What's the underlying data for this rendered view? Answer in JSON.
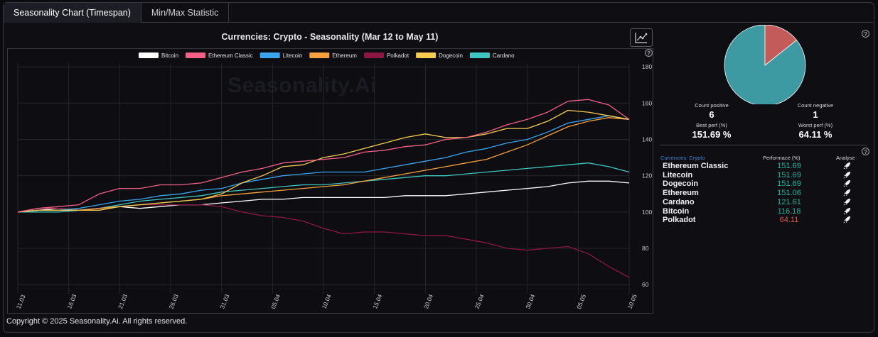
{
  "tabs": [
    {
      "label": "Seasonality Chart (Timespan)",
      "active": true
    },
    {
      "label": "Min/Max Statistic",
      "active": false
    }
  ],
  "chart_title": "Currencies: Crypto - Seasonality (Mar 12 to May 11)",
  "watermark": "Seasonality.Ai",
  "help_glyph": "?",
  "chart_data": {
    "type": "line",
    "title": "Currencies: Crypto - Seasonality (Mar 12 to May 11)",
    "xlabel": "",
    "ylabel": "",
    "ylim": [
      55,
      182
    ],
    "y_ticks": [
      60,
      80,
      100,
      120,
      140,
      160,
      180
    ],
    "x_tick_labels": [
      "11.03",
      "16.03",
      "21.03",
      "26.03",
      "31.03",
      "05.04",
      "10.04",
      "15.04",
      "20.04",
      "25.04",
      "30.04",
      "05.05",
      "10.05"
    ],
    "x_tick_index": [
      0,
      5,
      10,
      15,
      20,
      25,
      30,
      35,
      40,
      45,
      50,
      55,
      60
    ],
    "n_points": 61,
    "grid": true,
    "legend_position": "top-center",
    "series": [
      {
        "name": "Bitcoin",
        "color": "#ffffff",
        "points": [
          [
            0,
            100
          ],
          [
            2,
            101
          ],
          [
            4,
            102
          ],
          [
            6,
            101
          ],
          [
            8,
            102
          ],
          [
            10,
            103
          ],
          [
            12,
            102
          ],
          [
            14,
            103
          ],
          [
            16,
            104
          ],
          [
            18,
            104
          ],
          [
            20,
            105
          ],
          [
            22,
            106
          ],
          [
            24,
            107
          ],
          [
            26,
            107
          ],
          [
            28,
            108
          ],
          [
            30,
            108
          ],
          [
            32,
            108
          ],
          [
            34,
            108
          ],
          [
            36,
            108
          ],
          [
            38,
            109
          ],
          [
            40,
            109
          ],
          [
            42,
            109
          ],
          [
            44,
            110
          ],
          [
            46,
            111
          ],
          [
            48,
            112
          ],
          [
            50,
            113
          ],
          [
            52,
            114
          ],
          [
            54,
            116
          ],
          [
            56,
            117
          ],
          [
            58,
            117
          ],
          [
            60,
            116
          ]
        ]
      },
      {
        "name": "Ethereum Classic",
        "color": "#f45f86",
        "points": [
          [
            0,
            100
          ],
          [
            2,
            102
          ],
          [
            4,
            103
          ],
          [
            6,
            104
          ],
          [
            8,
            110
          ],
          [
            10,
            113
          ],
          [
            12,
            113
          ],
          [
            14,
            115
          ],
          [
            16,
            115
          ],
          [
            18,
            116
          ],
          [
            20,
            119
          ],
          [
            22,
            122
          ],
          [
            24,
            124
          ],
          [
            26,
            127
          ],
          [
            28,
            128
          ],
          [
            30,
            129
          ],
          [
            32,
            130
          ],
          [
            34,
            133
          ],
          [
            36,
            134
          ],
          [
            38,
            136
          ],
          [
            40,
            137
          ],
          [
            42,
            140
          ],
          [
            44,
            141
          ],
          [
            46,
            144
          ],
          [
            48,
            148
          ],
          [
            50,
            151
          ],
          [
            52,
            155
          ],
          [
            54,
            161
          ],
          [
            56,
            162
          ],
          [
            58,
            159
          ],
          [
            60,
            151
          ]
        ]
      },
      {
        "name": "Litecoin",
        "color": "#3aa4ee",
        "points": [
          [
            0,
            100
          ],
          [
            2,
            101
          ],
          [
            4,
            101
          ],
          [
            6,
            102
          ],
          [
            8,
            104
          ],
          [
            10,
            106
          ],
          [
            12,
            107
          ],
          [
            14,
            109
          ],
          [
            16,
            110
          ],
          [
            18,
            112
          ],
          [
            20,
            113
          ],
          [
            22,
            116
          ],
          [
            24,
            118
          ],
          [
            26,
            120
          ],
          [
            28,
            121
          ],
          [
            30,
            122
          ],
          [
            32,
            122
          ],
          [
            34,
            122
          ],
          [
            36,
            124
          ],
          [
            38,
            126
          ],
          [
            40,
            128
          ],
          [
            42,
            130
          ],
          [
            44,
            133
          ],
          [
            46,
            135
          ],
          [
            48,
            138
          ],
          [
            50,
            140
          ],
          [
            52,
            144
          ],
          [
            54,
            149
          ],
          [
            56,
            151
          ],
          [
            58,
            153
          ],
          [
            60,
            151
          ]
        ]
      },
      {
        "name": "Ethereum",
        "color": "#f7a03d",
        "points": [
          [
            0,
            100
          ],
          [
            2,
            101
          ],
          [
            4,
            101
          ],
          [
            6,
            101
          ],
          [
            8,
            102
          ],
          [
            10,
            103
          ],
          [
            12,
            104
          ],
          [
            14,
            105
          ],
          [
            16,
            106
          ],
          [
            18,
            107
          ],
          [
            20,
            109
          ],
          [
            22,
            110
          ],
          [
            24,
            111
          ],
          [
            26,
            112
          ],
          [
            28,
            113
          ],
          [
            30,
            114
          ],
          [
            32,
            115
          ],
          [
            34,
            117
          ],
          [
            36,
            119
          ],
          [
            38,
            121
          ],
          [
            40,
            123
          ],
          [
            42,
            125
          ],
          [
            44,
            127
          ],
          [
            46,
            129
          ],
          [
            48,
            133
          ],
          [
            50,
            137
          ],
          [
            52,
            142
          ],
          [
            54,
            147
          ],
          [
            56,
            150
          ],
          [
            58,
            152
          ],
          [
            60,
            151
          ]
        ]
      },
      {
        "name": "Polkadot",
        "color": "#8e1742",
        "points": [
          [
            0,
            100
          ],
          [
            2,
            102
          ],
          [
            4,
            102
          ],
          [
            6,
            101
          ],
          [
            8,
            102
          ],
          [
            10,
            103
          ],
          [
            12,
            104
          ],
          [
            14,
            104
          ],
          [
            16,
            104
          ],
          [
            18,
            104
          ],
          [
            20,
            103
          ],
          [
            22,
            100
          ],
          [
            24,
            98
          ],
          [
            26,
            97
          ],
          [
            28,
            95
          ],
          [
            30,
            91
          ],
          [
            32,
            88
          ],
          [
            34,
            89
          ],
          [
            36,
            89
          ],
          [
            38,
            88
          ],
          [
            40,
            87
          ],
          [
            42,
            87
          ],
          [
            44,
            85
          ],
          [
            46,
            83
          ],
          [
            48,
            80
          ],
          [
            50,
            79
          ],
          [
            52,
            80
          ],
          [
            54,
            81
          ],
          [
            56,
            77
          ],
          [
            58,
            70
          ],
          [
            60,
            64
          ]
        ]
      },
      {
        "name": "Dogecoin",
        "color": "#f6cc51",
        "points": [
          [
            0,
            100
          ],
          [
            2,
            101
          ],
          [
            4,
            101
          ],
          [
            6,
            101
          ],
          [
            8,
            101
          ],
          [
            10,
            103
          ],
          [
            12,
            104
          ],
          [
            14,
            105
          ],
          [
            16,
            106
          ],
          [
            18,
            107
          ],
          [
            20,
            110
          ],
          [
            22,
            116
          ],
          [
            24,
            120
          ],
          [
            26,
            125
          ],
          [
            28,
            126
          ],
          [
            30,
            130
          ],
          [
            32,
            132
          ],
          [
            34,
            135
          ],
          [
            36,
            138
          ],
          [
            38,
            141
          ],
          [
            40,
            143
          ],
          [
            42,
            141
          ],
          [
            44,
            141
          ],
          [
            46,
            143
          ],
          [
            48,
            146
          ],
          [
            50,
            146
          ],
          [
            52,
            150
          ],
          [
            54,
            156
          ],
          [
            56,
            155
          ],
          [
            58,
            153
          ],
          [
            60,
            151
          ]
        ]
      },
      {
        "name": "Cardano",
        "color": "#3ec6c1",
        "points": [
          [
            0,
            100
          ],
          [
            2,
            100
          ],
          [
            4,
            100
          ],
          [
            6,
            101
          ],
          [
            8,
            102
          ],
          [
            10,
            104
          ],
          [
            12,
            106
          ],
          [
            14,
            107
          ],
          [
            16,
            108
          ],
          [
            18,
            109
          ],
          [
            20,
            111
          ],
          [
            22,
            112
          ],
          [
            24,
            113
          ],
          [
            26,
            114
          ],
          [
            28,
            115
          ],
          [
            30,
            115
          ],
          [
            32,
            116
          ],
          [
            34,
            117
          ],
          [
            36,
            118
          ],
          [
            38,
            119
          ],
          [
            40,
            120
          ],
          [
            42,
            120
          ],
          [
            44,
            121
          ],
          [
            46,
            122
          ],
          [
            48,
            123
          ],
          [
            50,
            124
          ],
          [
            52,
            125
          ],
          [
            54,
            126
          ],
          [
            56,
            127
          ],
          [
            58,
            125
          ],
          [
            60,
            122
          ]
        ]
      }
    ]
  },
  "pie": {
    "slices": [
      {
        "label": "Count positive",
        "value": 6,
        "color": "#3d9aa3"
      },
      {
        "label": "Count negative",
        "value": 1,
        "color": "#c35b5b"
      }
    ]
  },
  "stats": {
    "count_positive_label": "Count positive",
    "count_positive_value": "6",
    "count_negative_label": "Count negative",
    "count_negative_value": "1",
    "best_label": "Best perf (%)",
    "best_value": "151.69 %",
    "worst_label": "Worst perf (%)",
    "worst_value": "64.11 %"
  },
  "perf_table": {
    "category_label": "Currencies: Crypto",
    "performance_header": "Performace (%)",
    "analyse_header": "Analyse",
    "rows": [
      {
        "name": "Ethereum Classic",
        "value": "151.69",
        "negative": false
      },
      {
        "name": "Litecoin",
        "value": "151.69",
        "negative": false
      },
      {
        "name": "Dogecoin",
        "value": "151.69",
        "negative": false
      },
      {
        "name": "Ethereum",
        "value": "151.06",
        "negative": false
      },
      {
        "name": "Cardano",
        "value": "121.61",
        "negative": false
      },
      {
        "name": "Bitcoin",
        "value": "116.18",
        "negative": false
      },
      {
        "name": "Polkadot",
        "value": "64.11",
        "negative": true
      }
    ]
  },
  "footer": "Copyright © 2025 Seasonality.Ai. All rights reserved."
}
